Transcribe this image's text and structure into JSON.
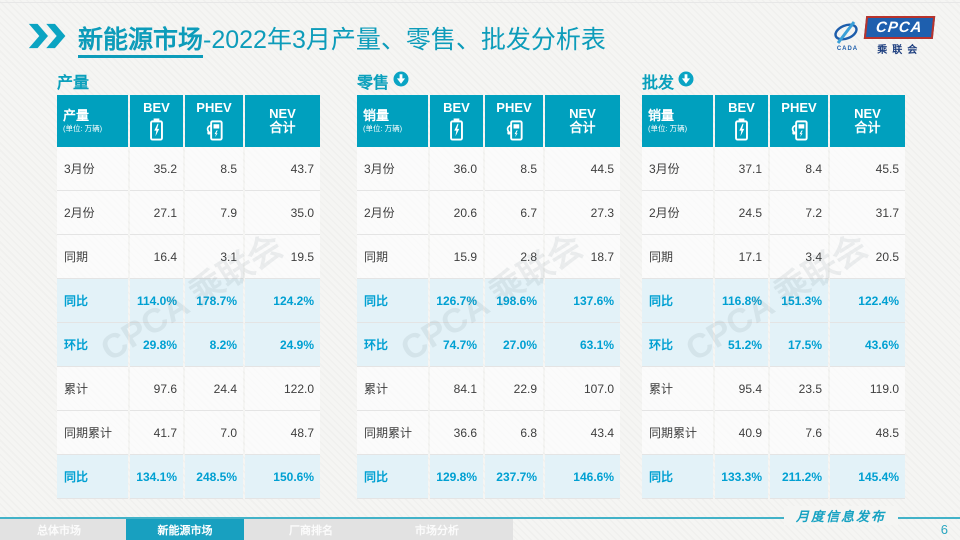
{
  "page": {
    "title_highlight": "新能源市场",
    "title_rest": "-2022年3月产量、零售、批发分析表",
    "footer_stamp": "月度信息发布",
    "page_number": "6"
  },
  "logo": {
    "cada": "CADA",
    "cpca": "CPCA",
    "union": "乘联会"
  },
  "watermark": "CPCA 乘联会",
  "colors": {
    "header_teal": "#00a0be",
    "accent_text": "#00a0d2",
    "highlight_row_bg": "#e3f2f8",
    "title_teal": "#0d9cba",
    "nav_active": "#18a0c0"
  },
  "nav": {
    "items": [
      "总体市场",
      "新能源市场",
      "厂商排名",
      "市场分析"
    ],
    "active_index": 1
  },
  "chart_data": [
    {
      "type": "table",
      "title": "产量",
      "trend_icon": null,
      "corner": {
        "label": "产量",
        "unit": "(单位: 万辆)"
      },
      "columns": [
        {
          "label": "BEV",
          "sub": "",
          "icon": "battery-icon"
        },
        {
          "label": "PHEV",
          "sub": "",
          "icon": "ev-charger-icon"
        },
        {
          "label": "NEV",
          "sub": "合计",
          "icon": null
        }
      ],
      "rows": [
        {
          "label": "3月份",
          "values": [
            "35.2",
            "8.5",
            "43.7"
          ],
          "highlight": false
        },
        {
          "label": "2月份",
          "values": [
            "27.1",
            "7.9",
            "35.0"
          ],
          "highlight": false
        },
        {
          "label": "同期",
          "values": [
            "16.4",
            "3.1",
            "19.5"
          ],
          "highlight": false
        },
        {
          "label": "同比",
          "values": [
            "114.0%",
            "178.7%",
            "124.2%"
          ],
          "highlight": true
        },
        {
          "label": "环比",
          "values": [
            "29.8%",
            "8.2%",
            "24.9%"
          ],
          "highlight": true
        },
        {
          "label": "累计",
          "values": [
            "97.6",
            "24.4",
            "122.0"
          ],
          "highlight": false
        },
        {
          "label": "同期累计",
          "values": [
            "41.7",
            "7.0",
            "48.7"
          ],
          "highlight": false
        },
        {
          "label": "同比",
          "values": [
            "134.1%",
            "248.5%",
            "150.6%"
          ],
          "highlight": true
        }
      ]
    },
    {
      "type": "table",
      "title": "零售",
      "trend_icon": "down-circle",
      "corner": {
        "label": "销量",
        "unit": "(单位: 万辆)"
      },
      "columns": [
        {
          "label": "BEV",
          "sub": "",
          "icon": "battery-icon"
        },
        {
          "label": "PHEV",
          "sub": "",
          "icon": "ev-charger-icon"
        },
        {
          "label": "NEV",
          "sub": "合计",
          "icon": null
        }
      ],
      "rows": [
        {
          "label": "3月份",
          "values": [
            "36.0",
            "8.5",
            "44.5"
          ],
          "highlight": false
        },
        {
          "label": "2月份",
          "values": [
            "20.6",
            "6.7",
            "27.3"
          ],
          "highlight": false
        },
        {
          "label": "同期",
          "values": [
            "15.9",
            "2.8",
            "18.7"
          ],
          "highlight": false
        },
        {
          "label": "同比",
          "values": [
            "126.7%",
            "198.6%",
            "137.6%"
          ],
          "highlight": true
        },
        {
          "label": "环比",
          "values": [
            "74.7%",
            "27.0%",
            "63.1%"
          ],
          "highlight": true
        },
        {
          "label": "累计",
          "values": [
            "84.1",
            "22.9",
            "107.0"
          ],
          "highlight": false
        },
        {
          "label": "同期累计",
          "values": [
            "36.6",
            "6.8",
            "43.4"
          ],
          "highlight": false
        },
        {
          "label": "同比",
          "values": [
            "129.8%",
            "237.7%",
            "146.6%"
          ],
          "highlight": true
        }
      ]
    },
    {
      "type": "table",
      "title": "批发",
      "trend_icon": "down-circle",
      "corner": {
        "label": "销量",
        "unit": "(单位: 万辆)"
      },
      "columns": [
        {
          "label": "BEV",
          "sub": "",
          "icon": "battery-icon"
        },
        {
          "label": "PHEV",
          "sub": "",
          "icon": "ev-charger-icon"
        },
        {
          "label": "NEV",
          "sub": "合计",
          "icon": null
        }
      ],
      "rows": [
        {
          "label": "3月份",
          "values": [
            "37.1",
            "8.4",
            "45.5"
          ],
          "highlight": false
        },
        {
          "label": "2月份",
          "values": [
            "24.5",
            "7.2",
            "31.7"
          ],
          "highlight": false
        },
        {
          "label": "同期",
          "values": [
            "17.1",
            "3.4",
            "20.5"
          ],
          "highlight": false
        },
        {
          "label": "同比",
          "values": [
            "116.8%",
            "151.3%",
            "122.4%"
          ],
          "highlight": true
        },
        {
          "label": "环比",
          "values": [
            "51.2%",
            "17.5%",
            "43.6%"
          ],
          "highlight": true
        },
        {
          "label": "累计",
          "values": [
            "95.4",
            "23.5",
            "119.0"
          ],
          "highlight": false
        },
        {
          "label": "同期累计",
          "values": [
            "40.9",
            "7.6",
            "48.5"
          ],
          "highlight": false
        },
        {
          "label": "同比",
          "values": [
            "133.3%",
            "211.2%",
            "145.4%"
          ],
          "highlight": true
        }
      ]
    }
  ]
}
